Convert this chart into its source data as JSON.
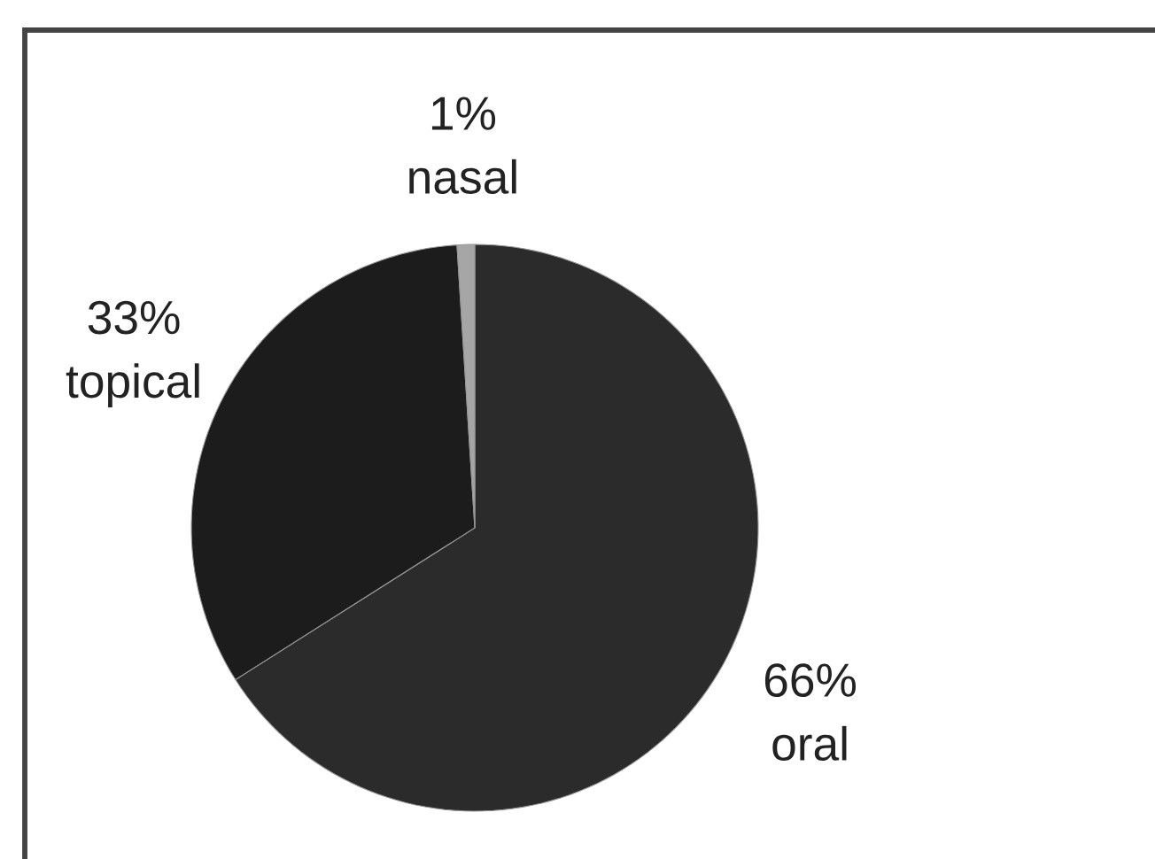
{
  "chart_data": {
    "type": "pie",
    "categories": [
      "oral",
      "topical",
      "nasal"
    ],
    "values": [
      66,
      33,
      1
    ],
    "colors": [
      "#2b2b2b",
      "#1c1c1c",
      "#a6a6a6"
    ],
    "value_labels": [
      "66%",
      "33%",
      "1%"
    ]
  }
}
